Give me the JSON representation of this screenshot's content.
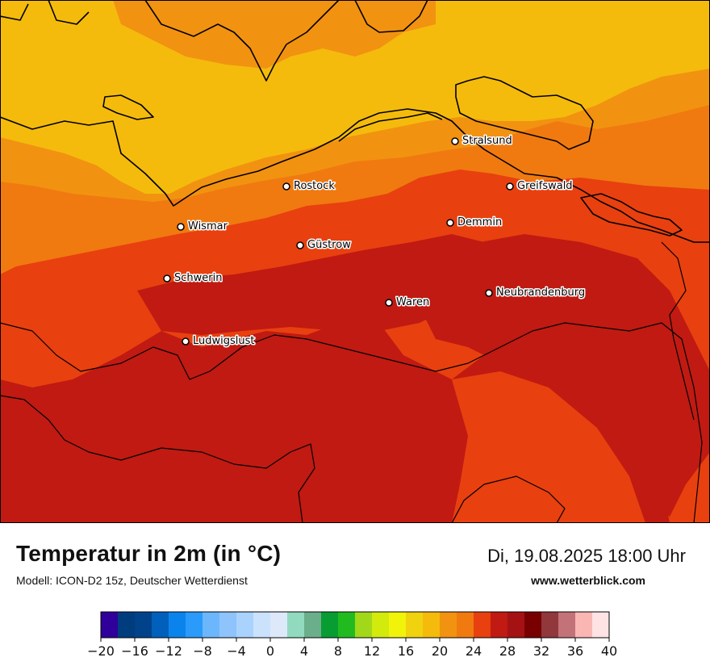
{
  "map": {
    "title": "Temperatur in 2m (in °C)",
    "model": "Modell: ICON-D2 15z, Deutscher Wetterdienst",
    "datetime": "Di, 19.08.2025 18:00 Uhr",
    "website": "www.wetterblick.com",
    "cities": [
      {
        "name": "Stralsund"
      },
      {
        "name": "Rostock"
      },
      {
        "name": "Greifswald"
      },
      {
        "name": "Wismar"
      },
      {
        "name": "Demmin"
      },
      {
        "name": "Güstrow"
      },
      {
        "name": "Schwerin"
      },
      {
        "name": "Neubrandenburg"
      },
      {
        "name": "Waren"
      },
      {
        "name": "Ludwigslust"
      }
    ],
    "temperature_colors": {
      "16_20": "#f4bb0c",
      "20_22": "#f29211",
      "22_24": "#f07a10",
      "24_26": "#e8400f",
      "26_28": "#c01a12"
    }
  },
  "legend": {
    "ticks": [
      "−20",
      "−16",
      "−12",
      "−8",
      "−4",
      "0",
      "4",
      "8",
      "12",
      "16",
      "20",
      "24",
      "28",
      "32",
      "36",
      "40"
    ],
    "colors": [
      "#30009a",
      "#003d7e",
      "#00438a",
      "#0060bb",
      "#0a84ec",
      "#2a9bfa",
      "#6cb6fc",
      "#8ec3fb",
      "#a9d3fd",
      "#cbe2fd",
      "#dde9fb",
      "#92dabf",
      "#6aae8c",
      "#089d33",
      "#21bb1f",
      "#a2d81a",
      "#d3ea0d",
      "#f1f30b",
      "#f1d20e",
      "#f4bb0c",
      "#f29211",
      "#f07a10",
      "#e8400f",
      "#c01a12",
      "#a51214",
      "#780000",
      "#90383c",
      "#c37378",
      "#fab6b3",
      "#ffe2e3"
    ]
  }
}
